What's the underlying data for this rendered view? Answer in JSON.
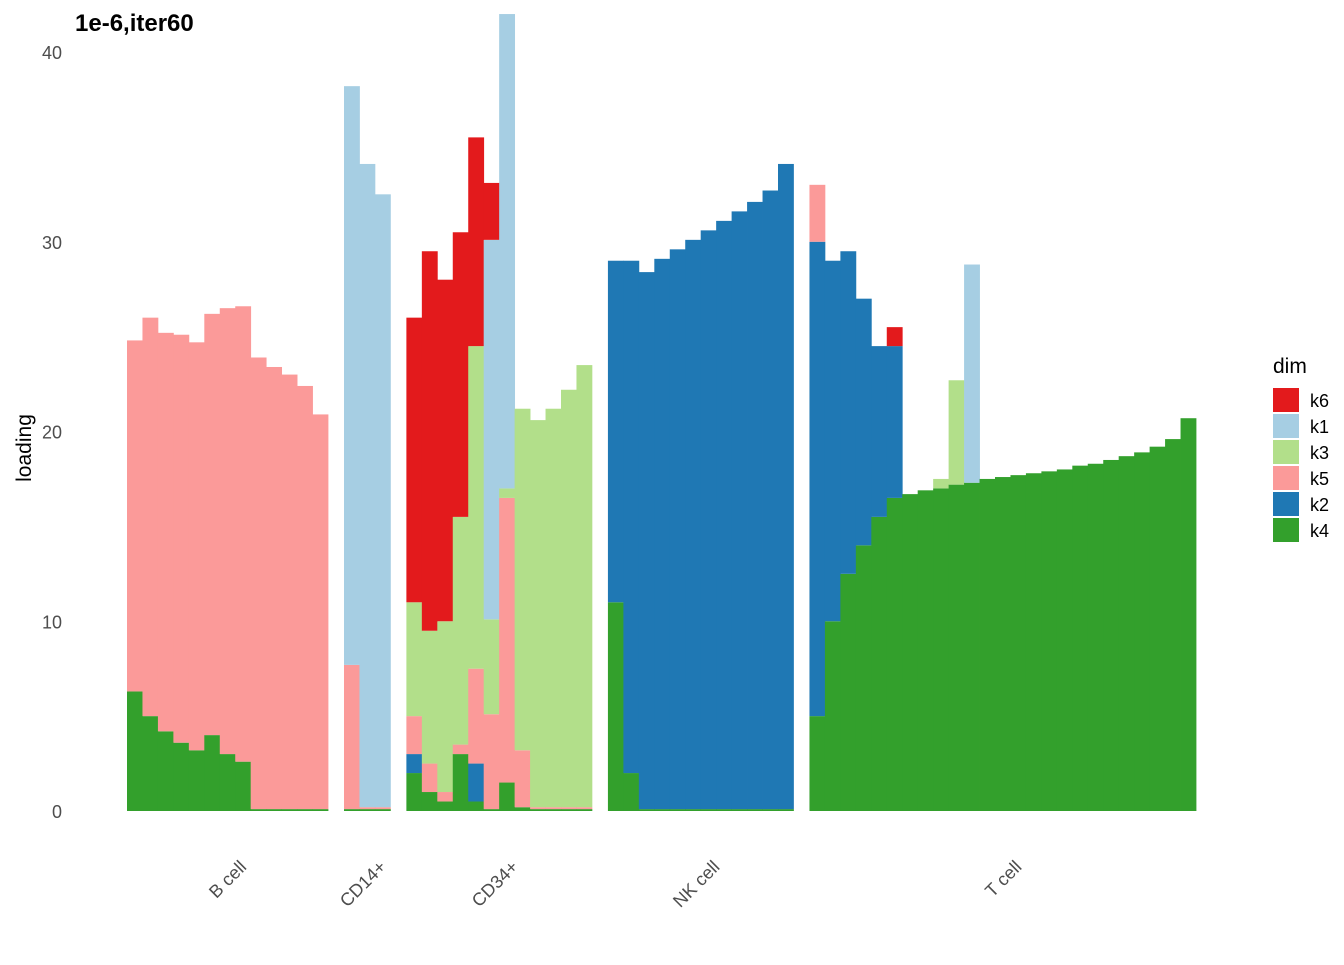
{
  "chart_data": {
    "type": "structure",
    "title": "1e-6,iter60",
    "ylabel": "loading",
    "ylim": [
      0,
      40
    ],
    "yticks": [
      0,
      10,
      20,
      30,
      40
    ],
    "legend_title": "dim",
    "series": [
      {
        "name": "k6",
        "color": "#e31a1c"
      },
      {
        "name": "k1",
        "color": "#a6cee3"
      },
      {
        "name": "k3",
        "color": "#b2df8a"
      },
      {
        "name": "k5",
        "color": "#fb9a99"
      },
      {
        "name": "k2",
        "color": "#1f78b4"
      },
      {
        "name": "k4",
        "color": "#33a02c"
      }
    ],
    "groups": [
      {
        "label": "B cell",
        "values": [
          [
            0,
            0,
            0,
            18.5,
            0,
            6.3
          ],
          [
            0,
            0,
            0,
            21,
            0,
            5
          ],
          [
            0,
            0,
            0,
            21,
            0,
            4.2
          ],
          [
            0,
            0,
            0,
            21.5,
            0,
            3.6
          ],
          [
            0,
            0,
            0,
            21.5,
            0,
            3.2
          ],
          [
            0,
            0,
            0,
            22.2,
            0,
            4
          ],
          [
            0,
            0,
            0,
            23.5,
            0,
            3
          ],
          [
            0,
            0,
            0,
            24,
            0,
            2.6
          ],
          [
            0,
            0,
            0,
            23.8,
            0,
            0.1
          ],
          [
            0,
            0,
            0,
            23.3,
            0,
            0.1
          ],
          [
            0,
            0,
            0,
            22.9,
            0,
            0.1
          ],
          [
            0,
            0,
            0,
            22.3,
            0,
            0.1
          ],
          [
            0,
            0,
            0,
            20.8,
            0,
            0.1
          ]
        ]
      },
      {
        "label": "CD14+",
        "values": [
          [
            0,
            30.5,
            0,
            7.6,
            0,
            0.1
          ],
          [
            0,
            33.9,
            0,
            0.1,
            0,
            0.1
          ],
          [
            0,
            32.3,
            0,
            0.1,
            0,
            0.1
          ]
        ]
      },
      {
        "label": "CD34+",
        "values": [
          [
            15,
            0,
            6,
            2,
            1,
            2
          ],
          [
            20,
            0,
            7,
            1.5,
            0,
            1
          ],
          [
            18,
            0,
            9,
            0.5,
            0,
            0.5
          ],
          [
            15,
            0,
            12,
            0.5,
            0,
            3
          ],
          [
            11,
            0,
            17,
            5,
            2,
            0.5
          ],
          [
            3,
            20,
            5,
            5,
            0,
            0.1
          ],
          [
            0,
            25,
            0.5,
            15,
            0,
            1.5
          ],
          [
            0,
            0,
            18,
            3,
            0,
            0.2
          ],
          [
            0,
            0,
            20.4,
            0.1,
            0,
            0.1
          ],
          [
            0,
            0,
            21,
            0.1,
            0,
            0.1
          ],
          [
            0,
            0,
            22,
            0.1,
            0,
            0.1
          ],
          [
            0,
            0,
            23.3,
            0.1,
            0,
            0.1
          ]
        ]
      },
      {
        "label": "NK cell",
        "values": [
          [
            0,
            0,
            0,
            0,
            18,
            11
          ],
          [
            0,
            0,
            0,
            0,
            27,
            2
          ],
          [
            0,
            0,
            0,
            0,
            28.3,
            0.1
          ],
          [
            0,
            0,
            0,
            0,
            29,
            0.1
          ],
          [
            0,
            0,
            0,
            0,
            29.5,
            0.1
          ],
          [
            0,
            0,
            0,
            0,
            30,
            0.1
          ],
          [
            0,
            0,
            0,
            0,
            30.5,
            0.1
          ],
          [
            0,
            0,
            0,
            0,
            31,
            0.1
          ],
          [
            0,
            0,
            0,
            0,
            31.5,
            0.1
          ],
          [
            0,
            0,
            0,
            0,
            32,
            0.1
          ],
          [
            0,
            0,
            0,
            0,
            32.6,
            0.1
          ],
          [
            0,
            0,
            0,
            0,
            34,
            0.1
          ]
        ]
      },
      {
        "label": "T cell",
        "values": [
          [
            0,
            0,
            0,
            3,
            25,
            5
          ],
          [
            0,
            0,
            0,
            0,
            19,
            10
          ],
          [
            0,
            0,
            0,
            0,
            17,
            12.5
          ],
          [
            0,
            0,
            0,
            0,
            13,
            14
          ],
          [
            0,
            0,
            0,
            0,
            9,
            15.5
          ],
          [
            1,
            0,
            0,
            0,
            8,
            16.5
          ],
          [
            0,
            0,
            0,
            0,
            0,
            16.7
          ],
          [
            0,
            0,
            0,
            0,
            0,
            16.9
          ],
          [
            0,
            0,
            0.5,
            0,
            0,
            17
          ],
          [
            0,
            0,
            5.5,
            0,
            0,
            17.2
          ],
          [
            0,
            11.5,
            0,
            0,
            0,
            17.3
          ],
          [
            0,
            0,
            0,
            0,
            0,
            17.5
          ],
          [
            0,
            0,
            0,
            0,
            0,
            17.6
          ],
          [
            0,
            0,
            0,
            0,
            0,
            17.7
          ],
          [
            0,
            0,
            0,
            0,
            0,
            17.8
          ],
          [
            0,
            0,
            0,
            0,
            0,
            17.9
          ],
          [
            0,
            0,
            0,
            0,
            0,
            18
          ],
          [
            0,
            0,
            0,
            0,
            0,
            18.2
          ],
          [
            0,
            0,
            0,
            0,
            0,
            18.3
          ],
          [
            0,
            0,
            0,
            0,
            0,
            18.5
          ],
          [
            0,
            0,
            0,
            0,
            0,
            18.7
          ],
          [
            0,
            0,
            0,
            0,
            0,
            18.9
          ],
          [
            0,
            0,
            0,
            0,
            0,
            19.2
          ],
          [
            0,
            0,
            0,
            0,
            0,
            19.6
          ],
          [
            0,
            0,
            0,
            0,
            0,
            20.7
          ]
        ]
      }
    ]
  }
}
